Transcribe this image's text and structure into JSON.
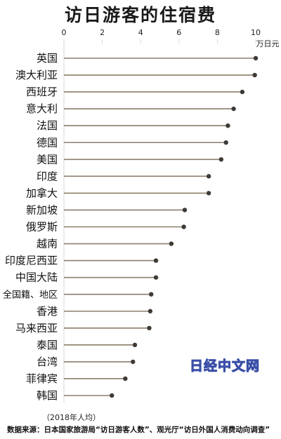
{
  "title": "访日游客的住宿费",
  "note": "（2018年人均）",
  "source": "数据来源：日本国家旅游局“访日游客人数”、观光厅“访日外国人消费动向调查”",
  "watermark": "日经中文网",
  "colors": {
    "stem": "#8b7e6a",
    "dot": "#3e3a36",
    "axis": "#d8d8d8"
  },
  "chart_data": {
    "type": "lollipop",
    "title": "访日游客的住宿费",
    "unit_label": "万日元",
    "xlim": [
      0,
      10
    ],
    "ticks": [
      0,
      2,
      4,
      6,
      8,
      10
    ],
    "grid": false,
    "categories": [
      "英国",
      "澳大利亚",
      "西班牙",
      "意大利",
      "法国",
      "德国",
      "美国",
      "印度",
      "加拿大",
      "新加坡",
      "俄罗斯",
      "越南",
      "印度尼西亚",
      "中国大陆",
      "全国籍、地区",
      "香港",
      "马来西亚",
      "泰国",
      "台湾",
      "菲律宾",
      "韩国"
    ],
    "values": [
      10.0,
      9.95,
      9.3,
      8.85,
      8.55,
      8.45,
      8.2,
      7.55,
      7.55,
      6.3,
      6.25,
      5.6,
      4.8,
      4.8,
      4.55,
      4.5,
      4.45,
      3.7,
      3.6,
      3.2,
      2.5
    ]
  }
}
